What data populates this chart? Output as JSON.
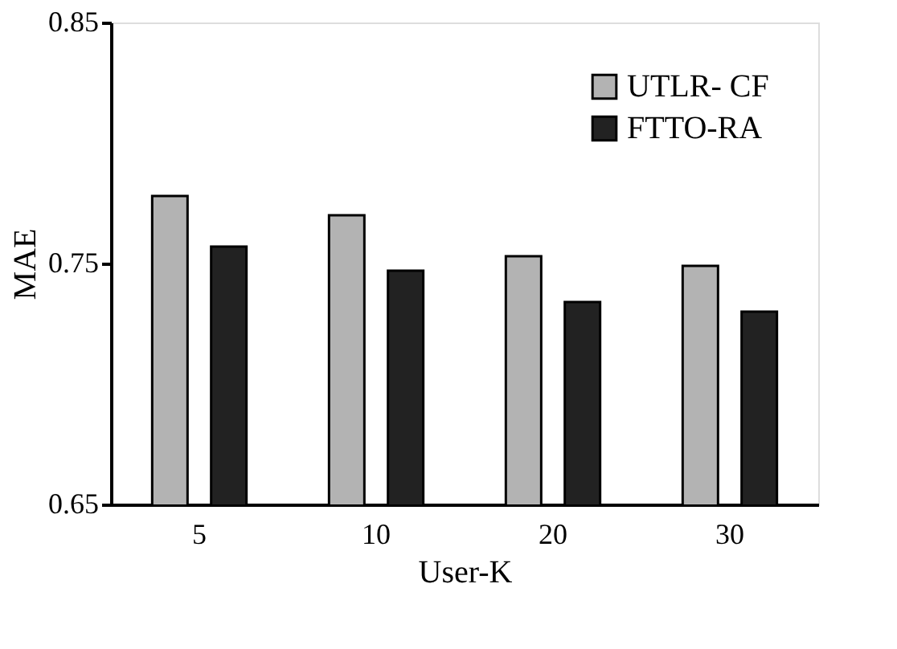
{
  "chart_data": {
    "type": "bar",
    "xlabel": "User-K",
    "ylabel": "MAE",
    "categories": [
      "5",
      "10",
      "20",
      "30"
    ],
    "series": [
      {
        "name": "UTLR- CF",
        "color": "#b3b3b3",
        "values": [
          0.778,
          0.77,
          0.753,
          0.749
        ]
      },
      {
        "name": "FTTO-RA",
        "color": "#222222",
        "values": [
          0.757,
          0.747,
          0.734,
          0.73
        ]
      }
    ],
    "ylim": [
      0.65,
      0.85
    ],
    "yticks": [
      0.65,
      0.75,
      0.85
    ],
    "grid": false,
    "legend": "top right"
  }
}
